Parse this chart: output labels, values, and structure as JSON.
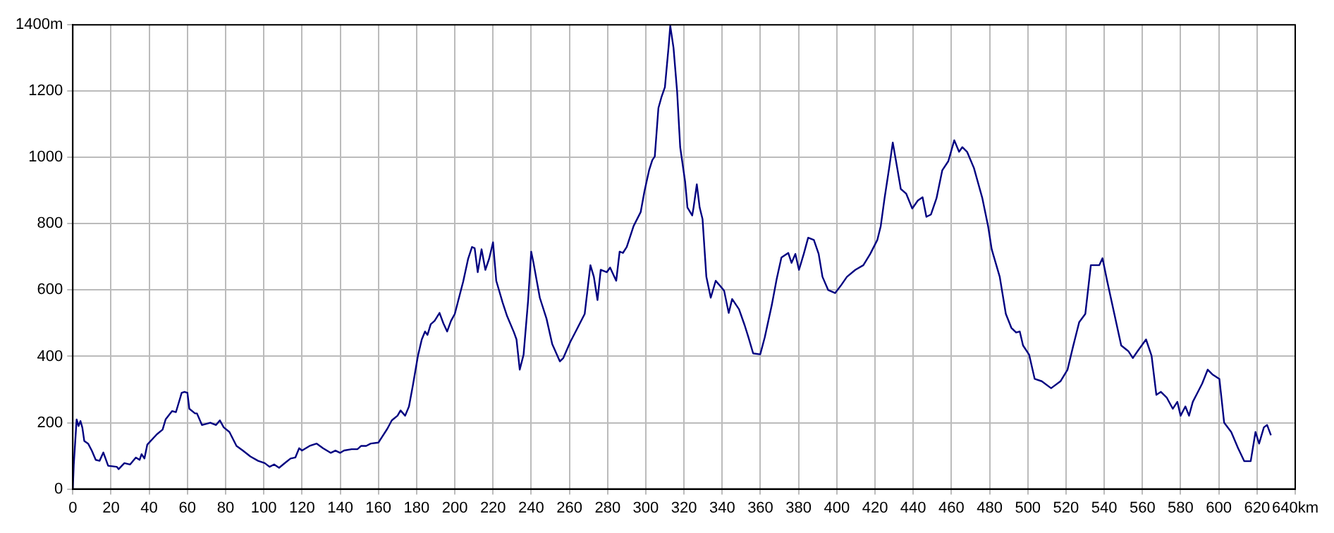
{
  "chart_data": {
    "type": "line",
    "xlim": [
      0,
      640
    ],
    "ylim": [
      0,
      1400
    ],
    "xticks": [
      0,
      20,
      40,
      60,
      80,
      100,
      120,
      140,
      160,
      180,
      200,
      220,
      240,
      260,
      280,
      300,
      320,
      340,
      360,
      380,
      400,
      420,
      440,
      460,
      480,
      500,
      520,
      540,
      560,
      580,
      600,
      620,
      {
        "value": 640,
        "label": "640km"
      }
    ],
    "yticks": [
      0,
      200,
      400,
      600,
      800,
      1000,
      1200,
      {
        "value": 1400,
        "label": "1400m"
      }
    ],
    "grid": true,
    "marker": "none",
    "series": [
      {
        "color": "#000080",
        "x": [
          0,
          0.5,
          2,
          3,
          4,
          5,
          6,
          8,
          10,
          12,
          14,
          16,
          18.5,
          23,
          24,
          27,
          30,
          33,
          35,
          36,
          37.5,
          39,
          44,
          47,
          48.6,
          52,
          54,
          57,
          58.5,
          60,
          61,
          64,
          65,
          67.6,
          72,
          75,
          77,
          79,
          82,
          85.7,
          89,
          93,
          97,
          100.5,
          103,
          105.4,
          108,
          111.6,
          114,
          116.5,
          118.5,
          120,
          124,
          127.7,
          131,
          135,
          137.5,
          140,
          142,
          146,
          149,
          151,
          153.6,
          156,
          160,
          162,
          164.7,
          167,
          170,
          171.6,
          174,
          176,
          178,
          180.7,
          182.7,
          184.4,
          185.7,
          187.4,
          189.4,
          192,
          194,
          196,
          198,
          200,
          202.5,
          204.4,
          207,
          209,
          210.4,
          212,
          214,
          216,
          218,
          220,
          221.7,
          225,
          227.4,
          231,
          232.3,
          234,
          236,
          238.4,
          240,
          241.2,
          244.5,
          248,
          251,
          255,
          256.8,
          260.5,
          264,
          268,
          271,
          272.8,
          274.7,
          276.4,
          279.6,
          281.3,
          284.5,
          286.3,
          288,
          290,
          293.6,
          297.3,
          299.3,
          301.7,
          303.4,
          304.7,
          306.6,
          308.3,
          310,
          312,
          312.8,
          314.5,
          316.4,
          318,
          320.6,
          321.8,
          324.3,
          325,
          326.7,
          328.2,
          329.7,
          331.7,
          334,
          336.6,
          339,
          341,
          343.4,
          345.2,
          348.8,
          351.8,
          353.7,
          356.2,
          359.9,
          362.3,
          366,
          368.5,
          371,
          374.6,
          376.3,
          378.3,
          380.2,
          382.7,
          385,
          388,
          390.5,
          392.5,
          395.5,
          399.1,
          402.3,
          405.3,
          409.7,
          413.9,
          417.5,
          421.2,
          423,
          425,
          427.4,
          429.3,
          431,
          433.5,
          436.3,
          439.5,
          442.4,
          444.9,
          446.9,
          449.3,
          452.2,
          455.2,
          458.4,
          461.5,
          464,
          465.7,
          468.2,
          471.8,
          476.2,
          479.2,
          481.1,
          485.3,
          488.5,
          491.4,
          493.9,
          495.8,
          497.5,
          500.7,
          503.6,
          507.3,
          512.2,
          517.1,
          520.8,
          523.7,
          526.9,
          530.1,
          533,
          537.4,
          539.1,
          541.6,
          545.3,
          548.9,
          552.6,
          555,
          557.5,
          561.9,
          564.8,
          567.3,
          569.7,
          572.7,
          575.9,
          578.3,
          580,
          582.5,
          584.4,
          586.4,
          588.8,
          591.3,
          594.2,
          596.6,
          600.3,
          602.8,
          606.5,
          610.1,
          613.3,
          616.7,
          619.2,
          621.1,
          623.6,
          625.3,
          627.3
        ],
        "values": [
          0,
          74,
          210,
          190,
          205,
          185,
          145,
          137,
          115,
          88,
          85,
          110,
          70,
          67,
          60,
          78,
          74,
          95,
          88,
          105,
          92,
          134,
          165,
          179,
          210,
          235,
          232,
          290,
          293,
          290,
          242,
          228,
          228,
          193,
          200,
          193,
          207,
          186,
          172,
          130,
          116,
          98,
          85,
          78,
          67,
          74,
          64,
          81,
          92,
          95,
          123,
          116,
          130,
          137,
          123,
          109,
          116,
          109,
          116,
          120,
          120,
          130,
          130,
          137,
          140,
          158,
          182,
          207,
          221,
          237,
          221,
          249,
          311,
          402,
          451,
          475,
          465,
          497,
          507,
          531,
          500,
          475,
          507,
          528,
          584,
          626,
          695,
          730,
          726,
          654,
          723,
          661,
          695,
          744,
          628,
          563,
          521,
          472,
          451,
          360,
          405,
          570,
          716,
          682,
          577,
          514,
          437,
          385,
          395,
          444,
          483,
          528,
          675,
          640,
          570,
          661,
          654,
          668,
          628,
          716,
          712,
          730,
          793,
          835,
          898,
          961,
          992,
          1003,
          1149,
          1184,
          1212,
          1338,
          1397,
          1331,
          1198,
          1031,
          926,
          849,
          825,
          849,
          919,
          849,
          814,
          640,
          577,
          628,
          612,
          598,
          531,
          573,
          542,
          493,
          458,
          409,
          406,
          458,
          556,
          633,
          698,
          712,
          682,
          709,
          661,
          709,
          758,
          751,
          709,
          640,
          600,
          591,
          615,
          640,
          661,
          675,
          709,
          751,
          793,
          877,
          968,
          1045,
          989,
          905,
          891,
          846,
          870,
          880,
          821,
          828,
          877,
          961,
          989,
          1052,
          1017,
          1031,
          1017,
          968,
          877,
          793,
          723,
          640,
          528,
          486,
          472,
          475,
          433,
          405,
          332,
          325,
          304,
          325,
          360,
          430,
          503,
          528,
          675,
          675,
          696,
          626,
          528,
          433,
          416,
          395,
          416,
          451,
          402,
          284,
          293,
          276,
          242,
          263,
          221,
          249,
          221,
          263,
          290,
          318,
          360,
          346,
          332,
          200,
          172,
          123,
          84,
          84,
          172,
          137,
          186,
          193,
          162
        ]
      }
    ]
  }
}
